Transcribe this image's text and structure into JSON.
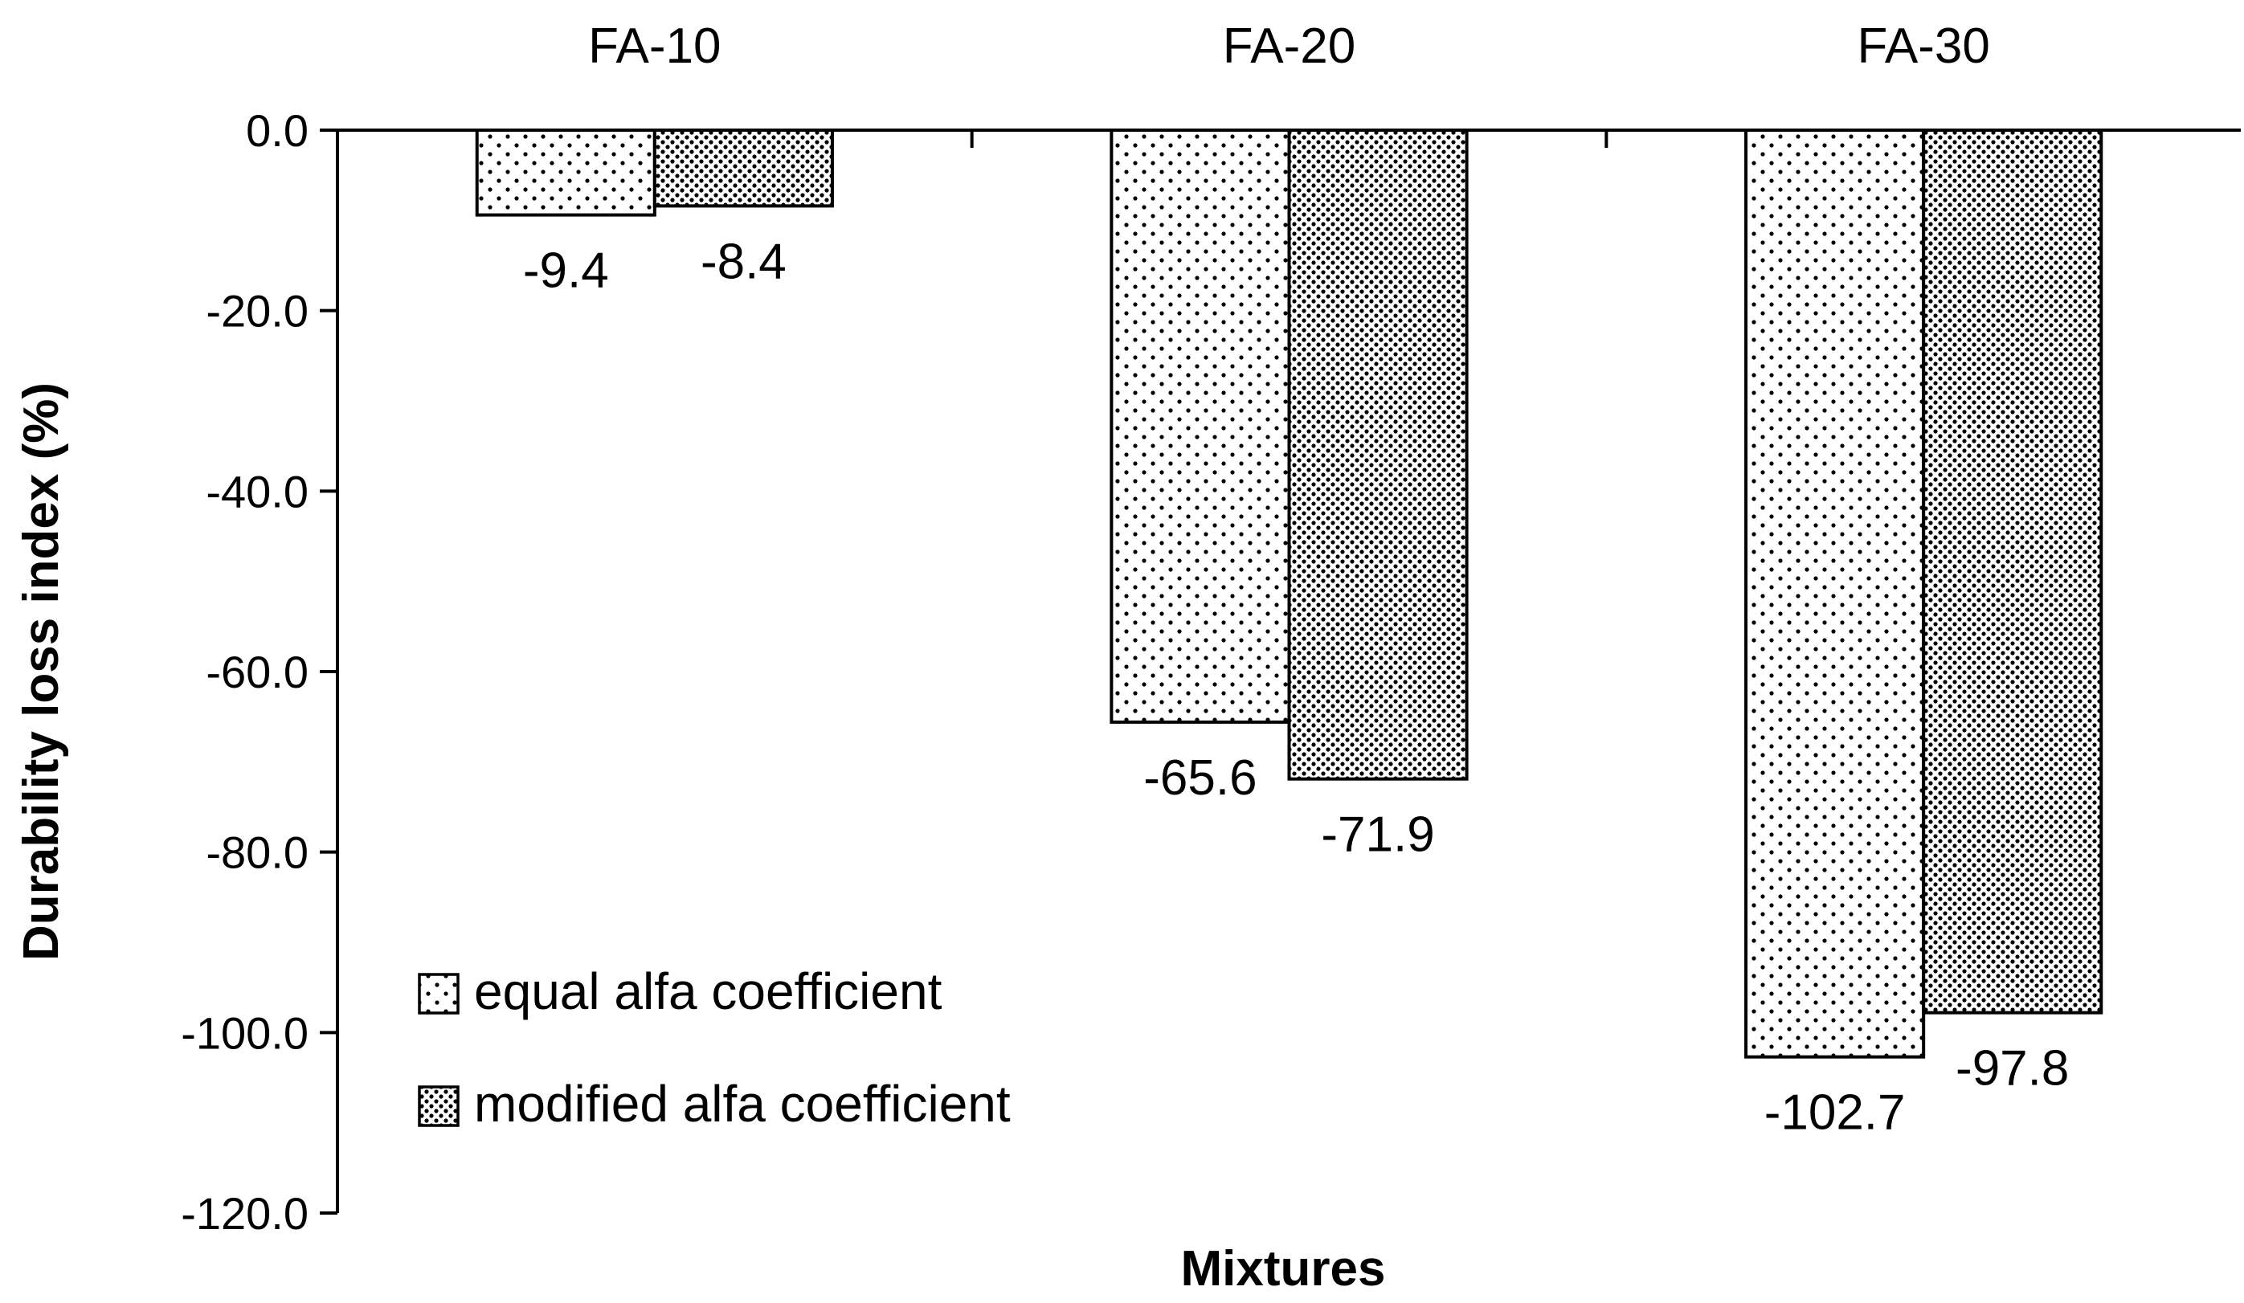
{
  "chart_data": {
    "type": "bar",
    "categories": [
      "FA-10",
      "FA-20",
      "FA-30"
    ],
    "series": [
      {
        "name": "equal alfa coefficient",
        "values": [
          -9.4,
          -65.6,
          -102.7
        ],
        "labels": [
          "-9.4",
          "-65.6",
          "-102.7"
        ],
        "pattern": "sparse-dots"
      },
      {
        "name": "modified alfa coefficient",
        "values": [
          -8.4,
          -71.9,
          -97.8
        ],
        "labels": [
          "-8.4",
          "-71.9",
          "-97.8"
        ],
        "pattern": "dense-dots"
      }
    ],
    "title": "",
    "xlabel": "Mixtures",
    "ylabel": "Durability loss index (%)",
    "ylim": [
      -120,
      0
    ],
    "yticks": [
      0,
      -20,
      -40,
      -60,
      -80,
      -100,
      -120
    ],
    "ytick_labels": [
      "0.0",
      "-20.0",
      "-40.0",
      "-60.0",
      "-80.0",
      "-100.0",
      "-120.0"
    ],
    "category_axis_position": "top",
    "grid": false,
    "legend_position": "bottom-left",
    "colors": {
      "bar_fill": "#ffffff",
      "bar_stroke": "#000000",
      "dots": "#000000"
    }
  }
}
